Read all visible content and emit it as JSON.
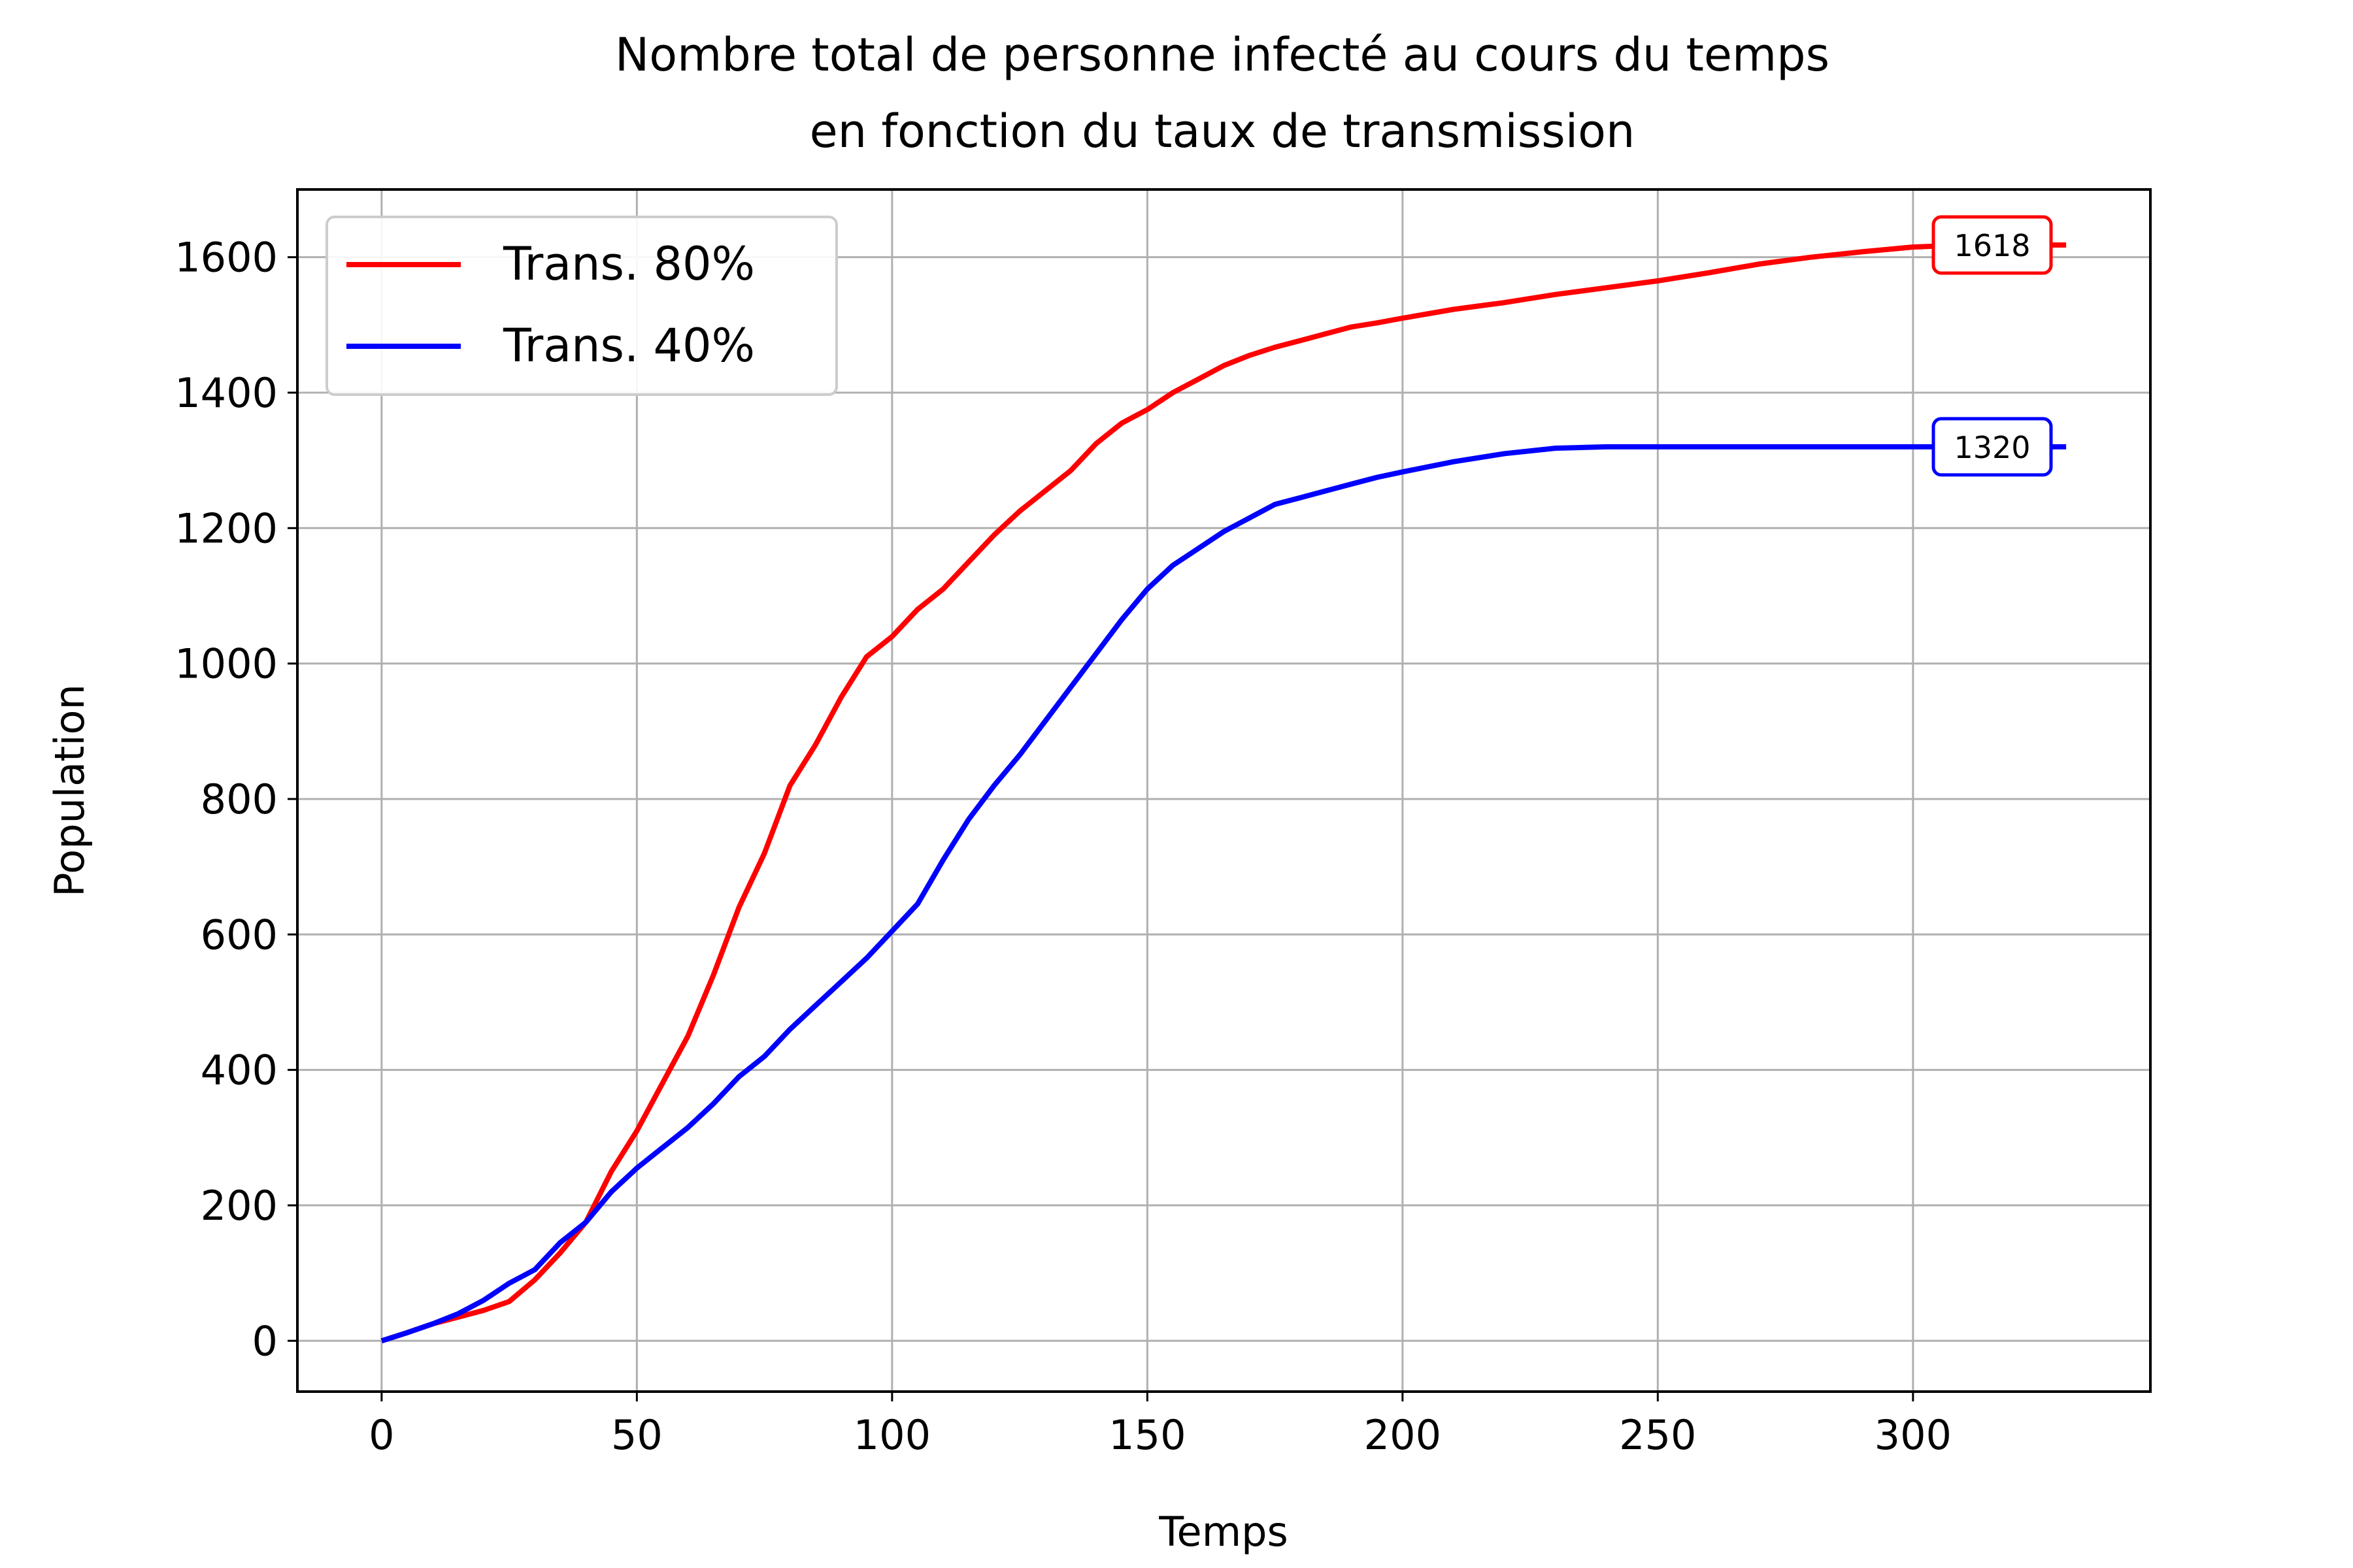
{
  "chart_data": {
    "type": "line",
    "title_lines": [
      "Nombre total de personne infecté au cours du temps",
      "en fonction du taux de transmission"
    ],
    "xlabel": "Temps",
    "ylabel": "Population",
    "xlim": [
      -16.5,
      346.5
    ],
    "ylim": [
      -75,
      1700
    ],
    "xticks": [
      0,
      50,
      100,
      150,
      200,
      250,
      300
    ],
    "yticks": [
      0,
      200,
      400,
      600,
      800,
      1000,
      1200,
      1400,
      1600
    ],
    "grid": true,
    "legend_position": "top-left",
    "series": [
      {
        "name": "Trans. 80%",
        "color": "#ff0000",
        "final_label": "1618",
        "x": [
          0,
          5,
          10,
          15,
          20,
          25,
          30,
          35,
          40,
          45,
          50,
          55,
          60,
          65,
          70,
          75,
          80,
          85,
          90,
          95,
          100,
          105,
          110,
          115,
          120,
          125,
          130,
          135,
          140,
          145,
          150,
          155,
          160,
          165,
          170,
          175,
          180,
          185,
          190,
          195,
          200,
          210,
          220,
          230,
          240,
          250,
          260,
          270,
          280,
          290,
          300,
          310,
          320,
          330
        ],
        "values": [
          0,
          12,
          25,
          35,
          45,
          58,
          90,
          130,
          175,
          250,
          310,
          380,
          450,
          540,
          640,
          720,
          820,
          880,
          950,
          1010,
          1040,
          1080,
          1110,
          1150,
          1190,
          1225,
          1255,
          1285,
          1325,
          1355,
          1375,
          1400,
          1420,
          1440,
          1455,
          1467,
          1477,
          1487,
          1497,
          1503,
          1510,
          1523,
          1533,
          1545,
          1555,
          1565,
          1577,
          1590,
          1600,
          1608,
          1615,
          1618,
          1618,
          1618
        ]
      },
      {
        "name": "Trans. 40%",
        "color": "#0000ff",
        "final_label": "1320",
        "x": [
          0,
          5,
          10,
          15,
          20,
          25,
          30,
          35,
          40,
          45,
          50,
          55,
          60,
          65,
          70,
          75,
          80,
          85,
          90,
          95,
          100,
          105,
          110,
          115,
          120,
          125,
          130,
          135,
          140,
          145,
          150,
          155,
          160,
          165,
          170,
          175,
          180,
          185,
          190,
          195,
          200,
          210,
          220,
          230,
          240,
          250,
          260,
          270,
          280,
          290,
          300,
          310,
          320,
          330
        ],
        "values": [
          0,
          12,
          25,
          40,
          60,
          85,
          105,
          145,
          175,
          220,
          255,
          285,
          315,
          350,
          390,
          420,
          460,
          495,
          530,
          565,
          605,
          645,
          710,
          770,
          820,
          865,
          915,
          965,
          1015,
          1065,
          1110,
          1145,
          1170,
          1195,
          1215,
          1235,
          1245,
          1255,
          1265,
          1275,
          1283,
          1298,
          1310,
          1318,
          1320,
          1320,
          1320,
          1320,
          1320,
          1320,
          1320,
          1320,
          1320,
          1320
        ]
      }
    ]
  }
}
